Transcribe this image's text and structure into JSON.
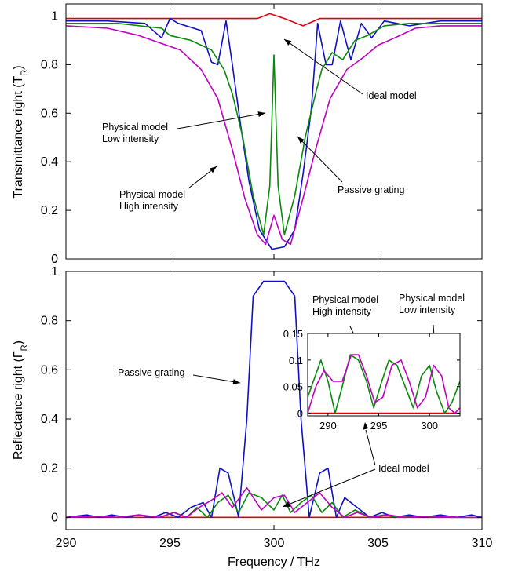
{
  "chart_data": [
    {
      "type": "line",
      "xlabel": "",
      "ylabel": "Transmittance right (T_R)",
      "xlim": [
        290,
        310
      ],
      "ylim": [
        0,
        1.05
      ],
      "xticks": [
        290,
        295,
        300,
        305,
        310
      ],
      "yticks": [
        "0",
        "0.2",
        "0.4",
        "0.6",
        "0.8",
        "1"
      ],
      "grid": false,
      "series": [
        {
          "name": "Ideal model",
          "color": "#e0000a",
          "x": [
            290,
            298,
            299.2,
            299.8,
            300.5,
            301.4,
            302.2,
            310
          ],
          "y": [
            0.99,
            0.99,
            0.99,
            1.01,
            0.99,
            0.96,
            0.99,
            0.99
          ]
        },
        {
          "name": "Passive grating",
          "color": "#1010c8",
          "x": [
            290,
            292,
            293.8,
            294.6,
            295.0,
            295.4,
            296.5,
            297.0,
            297.3,
            297.7,
            298.0,
            298.4,
            298.8,
            299.3,
            299.9,
            300.5,
            301.0,
            301.4,
            301.8,
            302.1,
            302.5,
            302.8,
            303.2,
            303.7,
            304.2,
            304.7,
            305.3,
            306.5,
            308,
            310
          ],
          "y": [
            0.98,
            0.98,
            0.97,
            0.91,
            0.99,
            0.97,
            0.94,
            0.81,
            0.8,
            0.98,
            0.8,
            0.55,
            0.32,
            0.12,
            0.04,
            0.05,
            0.12,
            0.35,
            0.62,
            0.97,
            0.8,
            0.8,
            0.98,
            0.82,
            0.97,
            0.91,
            0.98,
            0.96,
            0.98,
            0.98
          ]
        },
        {
          "name": "Physical model Low intensity",
          "color": "#0a8a0a",
          "x": [
            290,
            292.5,
            294.6,
            295.0,
            296.0,
            297.0,
            297.6,
            298.0,
            298.5,
            299.0,
            299.5,
            299.8,
            300.0,
            300.2,
            300.5,
            301.0,
            301.5,
            302.0,
            302.3,
            302.8,
            303.3,
            303.9,
            304.5,
            305.3,
            306.5,
            308,
            310
          ],
          "y": [
            0.97,
            0.97,
            0.95,
            0.92,
            0.9,
            0.86,
            0.78,
            0.68,
            0.5,
            0.26,
            0.1,
            0.3,
            0.84,
            0.3,
            0.1,
            0.26,
            0.5,
            0.68,
            0.78,
            0.85,
            0.82,
            0.9,
            0.92,
            0.96,
            0.97,
            0.97,
            0.97
          ]
        },
        {
          "name": "Physical model High intensity",
          "color": "#c000c0",
          "x": [
            290,
            292,
            293.5,
            294.5,
            295.5,
            296.5,
            297.3,
            298.0,
            298.6,
            299.2,
            299.6,
            300.0,
            300.4,
            300.8,
            301.4,
            302.0,
            302.7,
            303.5,
            304.3,
            305.0,
            305.8,
            306.8,
            308,
            310
          ],
          "y": [
            0.96,
            0.95,
            0.92,
            0.89,
            0.86,
            0.78,
            0.66,
            0.45,
            0.25,
            0.1,
            0.06,
            0.18,
            0.08,
            0.06,
            0.25,
            0.45,
            0.66,
            0.78,
            0.83,
            0.88,
            0.91,
            0.95,
            0.96,
            0.96
          ]
        }
      ],
      "annotations": [
        {
          "text": "Ideal model",
          "lines": [
            "Ideal model"
          ]
        },
        {
          "text": "Physical model Low intensity",
          "lines": [
            "Physical model",
            "Low intensity"
          ]
        },
        {
          "text": "Passive grating",
          "lines": [
            "Passive grating"
          ]
        },
        {
          "text": "Physical model High intensity",
          "lines": [
            "Physical model",
            "High intensity"
          ]
        }
      ]
    },
    {
      "type": "line",
      "xlabel": "Frequency / THz",
      "ylabel": "Reflectance right (Γ_R)",
      "xlim": [
        290,
        310
      ],
      "ylim": [
        -0.05,
        1.0
      ],
      "xticks": [
        290,
        295,
        300,
        305,
        310
      ],
      "yticks": [
        "0",
        "0.2",
        "0.4",
        "0.6",
        "0.8",
        "1"
      ],
      "grid": false,
      "series": [
        {
          "name": "Ideal model",
          "color": "#e0000a",
          "x": [
            290,
            310
          ],
          "y": [
            0,
            0
          ]
        },
        {
          "name": "Passive grating",
          "color": "#1010c8",
          "x": [
            290,
            291,
            291.6,
            292.2,
            292.9,
            293.5,
            294.2,
            294.8,
            295.4,
            296.0,
            296.6,
            297.0,
            297.4,
            297.8,
            298.3,
            298.7,
            299.0,
            299.5,
            300.0,
            300.5,
            301.0,
            301.3,
            301.7,
            302.2,
            302.6,
            303.0,
            303.4,
            304.0,
            304.6,
            305.2,
            305.8,
            306.5,
            307.2,
            308.0,
            308.8,
            309.5,
            310
          ],
          "y": [
            0.0,
            0.01,
            0.0,
            0.01,
            0.0,
            0.01,
            0.0,
            0.02,
            0.0,
            0.04,
            0.06,
            0.0,
            0.2,
            0.18,
            0.0,
            0.4,
            0.9,
            0.96,
            0.96,
            0.96,
            0.9,
            0.4,
            0.0,
            0.18,
            0.2,
            0.0,
            0.08,
            0.04,
            0.0,
            0.02,
            0.0,
            0.01,
            0.0,
            0.01,
            0.0,
            0.01,
            0.0
          ]
        },
        {
          "name": "Physical model Low intensity",
          "color": "#0a8a0a",
          "x": [
            290,
            291.5,
            292.5,
            293.5,
            294.5,
            295.2,
            295.8,
            296.3,
            296.8,
            297.3,
            297.8,
            298.3,
            298.8,
            299.4,
            300.0,
            300.4,
            300.8,
            301.3,
            301.8,
            302.3,
            302.8,
            303.3,
            303.9,
            304.6,
            305.3,
            306.0,
            307.0,
            308.5,
            310
          ],
          "y": [
            0.0,
            0.005,
            0.0,
            0.01,
            0.0,
            0.02,
            0.0,
            0.04,
            0.0,
            0.06,
            0.09,
            0.02,
            0.1,
            0.08,
            0.03,
            0.09,
            0.02,
            0.06,
            0.09,
            0.02,
            0.06,
            0.0,
            0.03,
            0.0,
            0.01,
            0.0,
            0.005,
            0.0,
            0.0
          ]
        },
        {
          "name": "Physical model High intensity",
          "color": "#c000c0",
          "x": [
            290,
            291.5,
            292.5,
            293.5,
            294.5,
            295.2,
            295.8,
            296.4,
            297.0,
            297.5,
            298.0,
            298.7,
            299.4,
            300.0,
            300.5,
            301.0,
            301.6,
            302.2,
            302.8,
            303.4,
            304.0,
            304.7,
            305.5,
            306.3,
            307.5,
            309,
            310
          ],
          "y": [
            0.0,
            0.005,
            0.0,
            0.01,
            0.0,
            0.02,
            0.0,
            0.04,
            0.07,
            0.1,
            0.04,
            0.12,
            0.03,
            0.08,
            0.09,
            0.02,
            0.06,
            0.1,
            0.04,
            0.0,
            0.02,
            0.0,
            0.01,
            0.0,
            0.005,
            0.0,
            0.0
          ]
        }
      ],
      "annotations": [
        {
          "text": "Passive grating",
          "lines": [
            "Passive grating"
          ]
        },
        {
          "text": "Ideal model",
          "lines": [
            "Ideal model"
          ]
        },
        {
          "text": "Physical model High intensity",
          "lines": [
            "Physical model",
            "High intensity"
          ]
        },
        {
          "text": "Physical model Low intensity",
          "lines": [
            "Physical model",
            "Low intensity"
          ]
        }
      ]
    },
    {
      "type": "line",
      "inset_of": "Reflectance right",
      "xlim": [
        288,
        303
      ],
      "ylim": [
        -0.005,
        0.15
      ],
      "xticks": [
        290,
        295,
        300
      ],
      "yticks": [
        "0",
        "0.05",
        "0.1",
        "0.15"
      ],
      "grid": false,
      "series": [
        {
          "name": "Ideal model",
          "color": "#e0000a",
          "x": [
            288,
            303
          ],
          "y": [
            0,
            0
          ]
        },
        {
          "name": "Physical model Low intensity",
          "color": "#0a8a0a",
          "x": [
            288,
            289.3,
            290.0,
            290.7,
            291.4,
            292.2,
            293.0,
            293.8,
            294.5,
            295.3,
            296.0,
            296.8,
            297.6,
            298.4,
            299.2,
            300.0,
            300.7,
            301.5,
            302.2,
            303
          ],
          "y": [
            0.03,
            0.1,
            0.06,
            0.0,
            0.05,
            0.11,
            0.1,
            0.06,
            0.01,
            0.06,
            0.1,
            0.09,
            0.05,
            0.01,
            0.07,
            0.09,
            0.04,
            0.0,
            0.02,
            0.06
          ]
        },
        {
          "name": "Physical model High intensity",
          "color": "#c000c0",
          "x": [
            288,
            288.8,
            289.6,
            290.5,
            291.4,
            292.3,
            293.0,
            293.8,
            294.6,
            295.4,
            296.3,
            297.2,
            298.0,
            298.8,
            299.6,
            300.4,
            301.2,
            301.9,
            302.5,
            303
          ],
          "y": [
            0.0,
            0.05,
            0.08,
            0.06,
            0.06,
            0.11,
            0.11,
            0.07,
            0.02,
            0.03,
            0.09,
            0.1,
            0.06,
            0.01,
            0.03,
            0.09,
            0.07,
            0.01,
            0.0,
            0.01
          ]
        }
      ]
    }
  ]
}
